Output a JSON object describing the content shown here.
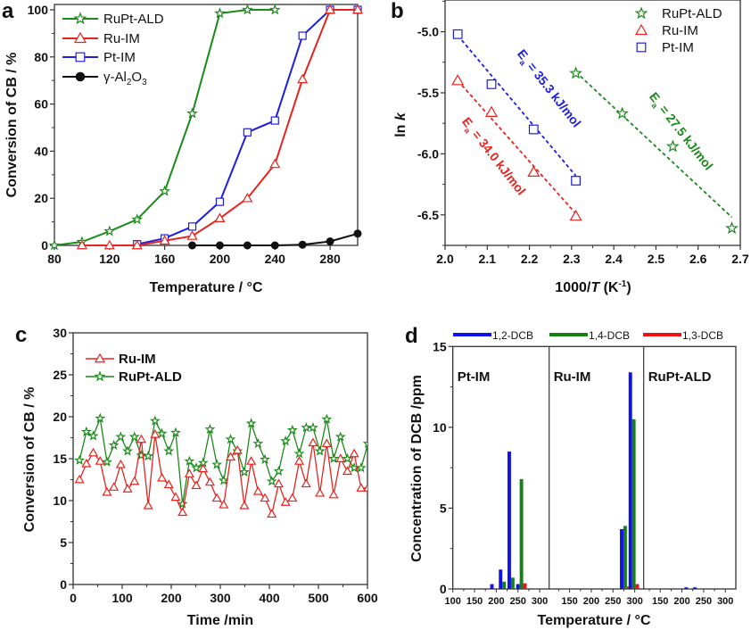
{
  "chart_data": [
    {
      "id": "a",
      "panel_label": "a",
      "type": "line",
      "title": "",
      "xlabel": "Temperature / °C",
      "ylabel": "Conversion of CB / %",
      "xlim": [
        80,
        300
      ],
      "ylim": [
        0,
        100
      ],
      "xticks": [
        80,
        120,
        160,
        200,
        240,
        280
      ],
      "yticks": [
        0,
        20,
        40,
        60,
        80,
        100
      ],
      "legend_position": "top-left",
      "series": [
        {
          "name": "RuPt-ALD",
          "color": "#1a8a1a",
          "marker": "star",
          "x": [
            80,
            100,
            120,
            140,
            160,
            180,
            200,
            220,
            240
          ],
          "y": [
            0,
            1.5,
            6,
            11,
            23,
            56,
            98.5,
            100,
            100
          ]
        },
        {
          "name": "Ru-IM",
          "color": "#e8231f",
          "marker": "triangle",
          "x": [
            100,
            120,
            140,
            160,
            180,
            200,
            220,
            240,
            260,
            280,
            300
          ],
          "y": [
            0,
            0,
            0,
            2,
            4,
            11.5,
            20,
            34.5,
            70.5,
            100,
            100
          ]
        },
        {
          "name": "Pt-IM",
          "color": "#1e1ee0",
          "marker": "square",
          "x": [
            140,
            160,
            180,
            200,
            220,
            240,
            260,
            280,
            300
          ],
          "y": [
            0.5,
            3,
            8,
            18.5,
            48,
            53,
            89,
            100,
            100
          ]
        },
        {
          "name": "γ-Al",
          "name_sub1": "2",
          "name_mid": "O",
          "name_sub2": "3",
          "color": "#111111",
          "marker": "circle",
          "x": [
            180,
            200,
            220,
            240,
            260,
            280,
            300
          ],
          "y": [
            0,
            0,
            0,
            0,
            0.3,
            1.7,
            5
          ]
        }
      ]
    },
    {
      "id": "b",
      "panel_label": "b",
      "type": "scatter",
      "title": "",
      "xlabel_pre": "1000/",
      "xlabel_italic": "T",
      "xlabel_post": " (K",
      "xlabel_sup": "-1",
      "xlabel_end": ")",
      "ylabel_pre": "ln ",
      "ylabel_italic": "k",
      "xlim": [
        2.0,
        2.7
      ],
      "ylim": [
        -6.75,
        -4.74
      ],
      "xticks": [
        "2.0",
        "2.1",
        "2.2",
        "2.3",
        "2.4",
        "2.5",
        "2.6",
        "2.7"
      ],
      "yticks": [
        "-5.0",
        "-5.5",
        "-6.0",
        "-6.5"
      ],
      "legend_position": "top-right",
      "series": [
        {
          "name": "RuPt-ALD",
          "color": "#1a8a1a",
          "marker": "star",
          "x": [
            2.31,
            2.42,
            2.54,
            2.68
          ],
          "y": [
            -5.34,
            -5.67,
            -5.94,
            -6.61
          ],
          "fit": [
            [
              2.31,
              -5.33
            ],
            [
              2.68,
              -6.52
            ]
          ],
          "annotation": {
            "E": "E",
            "sub": "a",
            "text": " = 27.5 kJ/mol"
          }
        },
        {
          "name": "Ru-IM",
          "color": "#e8231f",
          "marker": "triangle",
          "x": [
            2.03,
            2.11,
            2.21,
            2.31
          ],
          "y": [
            -5.4,
            -5.66,
            -6.15,
            -6.51
          ],
          "fit": [
            [
              2.03,
              -5.4
            ],
            [
              2.31,
              -6.49
            ]
          ],
          "annotation": {
            "E": "E",
            "sub": "a",
            "text": " = 34.0 kJ/mol"
          }
        },
        {
          "name": "Pt-IM",
          "color": "#1e1ee0",
          "marker": "square",
          "x": [
            2.03,
            2.11,
            2.21,
            2.31
          ],
          "y": [
            -5.02,
            -5.43,
            -5.8,
            -6.22
          ],
          "fit": [
            [
              2.03,
              -5.03
            ],
            [
              2.31,
              -6.18
            ]
          ],
          "annotation": {
            "E": "E",
            "sub": "a",
            "text": " = 35.3 kJ/mol"
          }
        }
      ]
    },
    {
      "id": "c",
      "panel_label": "c",
      "type": "line",
      "title": "",
      "xlabel": "Time /min",
      "ylabel": "Conversion of CB / %",
      "xlim": [
        0,
        600
      ],
      "ylim": [
        0,
        30
      ],
      "xticks": [
        0,
        100,
        200,
        300,
        400,
        500,
        600
      ],
      "yticks": [
        0,
        5,
        10,
        15,
        20,
        25,
        30
      ],
      "legend_position": "top-left",
      "x": [
        13,
        27,
        41,
        55,
        69,
        83,
        97,
        111,
        125,
        139,
        153,
        167,
        181,
        195,
        209,
        223,
        237,
        251,
        265,
        279,
        293,
        307,
        321,
        335,
        349,
        363,
        377,
        391,
        405,
        419,
        433,
        447,
        461,
        475,
        489,
        503,
        517,
        531,
        545,
        559,
        573,
        587,
        601
      ],
      "series": [
        {
          "name": "Ru-IM",
          "color": "#e8231f",
          "marker": "triangle",
          "y": [
            12.5,
            14.4,
            15.7,
            14.7,
            11.0,
            11.6,
            14.3,
            11.4,
            12.3,
            17.3,
            9.4,
            17.9,
            12.7,
            11.9,
            10.4,
            8.6,
            13.2,
            11.8,
            13.8,
            12.2,
            10.3,
            9.5,
            15.2,
            16.0,
            9.4,
            14.7,
            11.1,
            10.3,
            8.4,
            12.0,
            9.8,
            10.3,
            14.7,
            12.0,
            16.9,
            10.9,
            16.8,
            10.7,
            15.0,
            13.5,
            15.6,
            11.5,
            11.5
          ]
        },
        {
          "name": "RuPt-ALD",
          "color": "#1a8a1a",
          "marker": "star",
          "y": [
            14.8,
            18.2,
            17.7,
            19.8,
            14.6,
            16.6,
            17.6,
            15.9,
            17.6,
            15.4,
            15.3,
            19.5,
            18.0,
            15.9,
            18.1,
            9.6,
            14.7,
            13.9,
            14.5,
            18.5,
            14.3,
            12.4,
            17.3,
            15.9,
            13.4,
            19.2,
            16.8,
            14.9,
            12.3,
            13.5,
            17.1,
            18.4,
            15.6,
            18.7,
            18.7,
            15.9,
            19.7,
            15.0,
            17.6,
            15.0,
            13.9,
            13.9,
            16.8
          ]
        }
      ]
    },
    {
      "id": "d",
      "panel_label": "d",
      "type": "bar",
      "title": "",
      "xlabel": "Temperature / °C",
      "ylabel": "Concentration of DCB /ppm",
      "ylim": [
        0,
        15
      ],
      "yticks": [
        0,
        5,
        10,
        15
      ],
      "legend_position": "top",
      "series_names": [
        "1,2-DCB",
        "1,4-DCB",
        "1,3-DCB"
      ],
      "series_colors": [
        "#1010e8",
        "#168016",
        "#ee1111"
      ],
      "subplots": [
        {
          "label": "Pt-IM",
          "xticks": [
            100,
            150,
            200,
            250,
            300
          ],
          "xlim": [
            100,
            322
          ],
          "categories": [
            200,
            220,
            240,
            260
          ],
          "values": {
            "1,2-DCB": [
              0.3,
              1.2,
              8.5,
              0.3
            ],
            "1,4-DCB": [
              0,
              0.45,
              0.7,
              6.8
            ],
            "1,3-DCB": [
              0,
              0,
              0,
              0.35
            ]
          }
        },
        {
          "label": "Ru-IM",
          "xticks": [
            150,
            200,
            250,
            300
          ],
          "xlim": [
            103,
            322
          ],
          "categories": [
            280,
            300
          ],
          "values": {
            "1,2-DCB": [
              3.7,
              13.4
            ],
            "1,4-DCB": [
              3.9,
              10.5
            ],
            "1,3-DCB": [
              0.15,
              0.3
            ]
          }
        },
        {
          "label": "RuPt-ALD",
          "xticks": [
            150,
            200,
            250,
            300
          ],
          "xlim": [
            112,
            322
          ],
          "categories": [
            220,
            240
          ],
          "values": {
            "1,2-DCB": [
              0.1,
              0.1
            ],
            "1,4-DCB": [
              0.03,
              0.03
            ],
            "1,3-DCB": [
              0,
              0
            ]
          }
        }
      ]
    }
  ]
}
